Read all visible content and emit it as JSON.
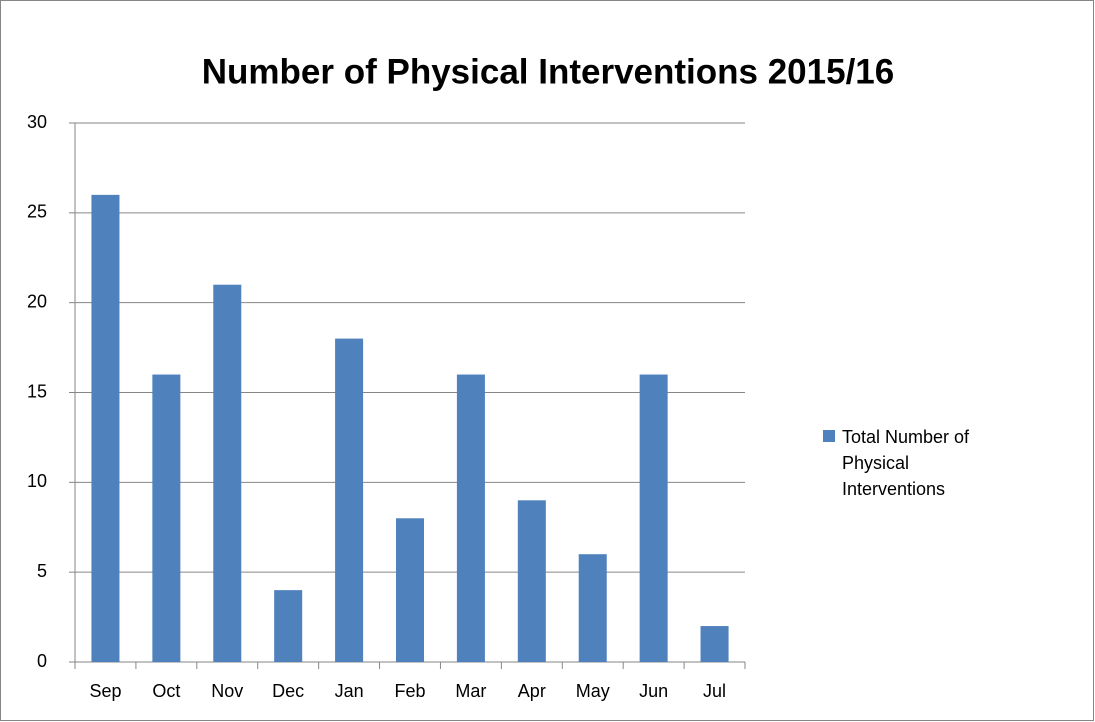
{
  "chart_data": {
    "type": "bar",
    "title": "Number of Physical Interventions 2015/16",
    "categories": [
      "Sep",
      "Oct",
      "Nov",
      "Dec",
      "Jan",
      "Feb",
      "Mar",
      "Apr",
      "May",
      "Jun",
      "Jul"
    ],
    "series": [
      {
        "name": "Total Number of Physical Interventions",
        "color": "#4f81bd",
        "values": [
          26,
          16,
          21,
          4,
          18,
          8,
          16,
          9,
          6,
          16,
          2
        ]
      }
    ],
    "ylim": [
      0,
      30
    ],
    "yticks": [
      0,
      5,
      10,
      15,
      20,
      25,
      30
    ],
    "grid": true,
    "legend": "right"
  }
}
